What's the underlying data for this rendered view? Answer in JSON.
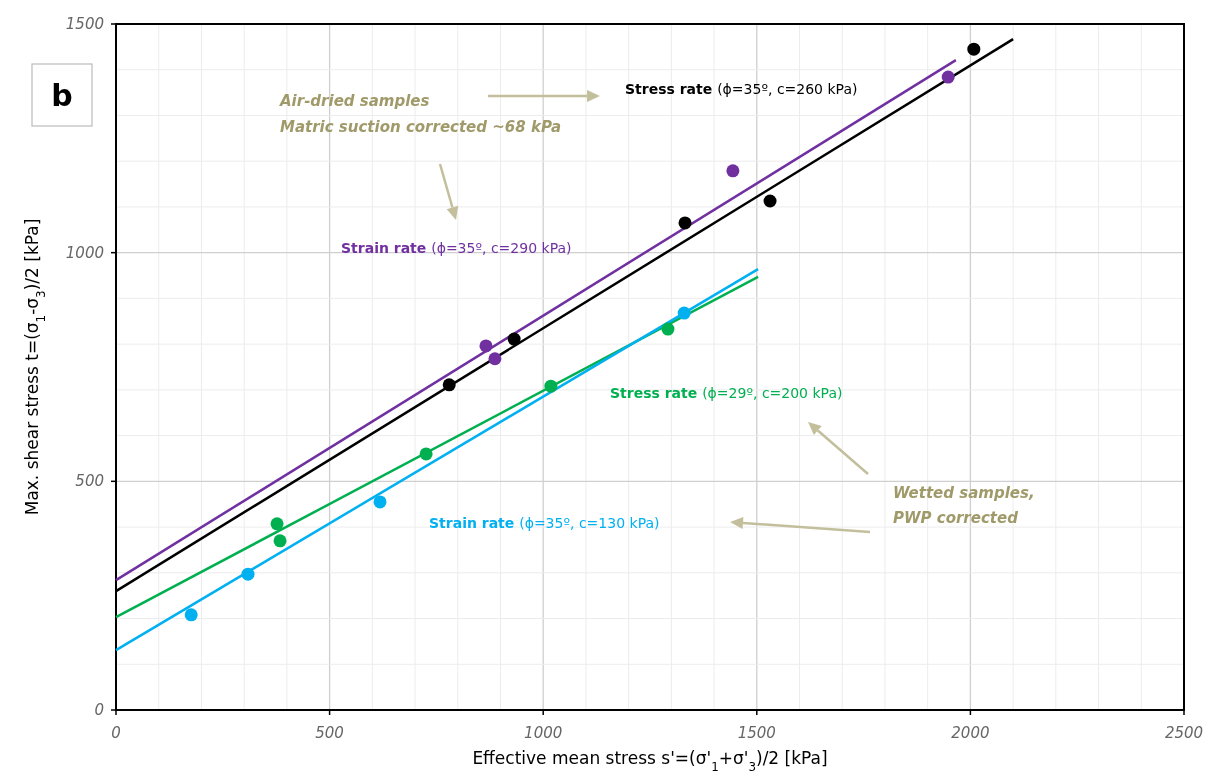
{
  "chart_data": {
    "type": "scatter",
    "xlabel": "Effective mean stress s'=(σ'$_{1}$+σ'$_{3}$)/2  [kPa]",
    "ylabel": "Max. shear stress   t=(σ$_{1}$-σ$_{3}$)/2  [kPa]",
    "xlim": [
      0,
      2500
    ],
    "ylim": [
      0,
      1500
    ],
    "xticks": [
      0,
      {
        "value": 100,
        "label": null
      },
      {
        "value": 200,
        "label": null
      },
      {
        "value": 300,
        "label": null
      },
      {
        "value": 400,
        "label": null
      },
      500,
      {
        "value": 600,
        "label": null
      },
      {
        "value": 700,
        "label": null
      },
      {
        "value": 800,
        "label": null
      },
      {
        "value": 900,
        "label": null
      },
      1000,
      {
        "value": 1100,
        "label": null
      },
      {
        "value": 1200,
        "label": null
      },
      {
        "value": 1300,
        "label": null
      },
      {
        "value": 1400,
        "label": null
      },
      1500,
      {
        "value": 1600,
        "label": null
      },
      {
        "value": 1700,
        "label": null
      },
      {
        "value": 1800,
        "label": null
      },
      {
        "value": 1900,
        "label": null
      },
      2000,
      {
        "value": 2100,
        "label": null
      },
      {
        "value": 2200,
        "label": null
      },
      {
        "value": 2300,
        "label": null
      },
      {
        "value": 2400,
        "label": null
      },
      2500
    ],
    "yticks": [
      0,
      {
        "value": 100,
        "label": null
      },
      {
        "value": 200,
        "label": null
      },
      {
        "value": 300,
        "label": null
      },
      {
        "value": 400,
        "label": null
      },
      500,
      {
        "value": 600,
        "label": null
      },
      {
        "value": 700,
        "label": null
      },
      {
        "value": 800,
        "label": null
      },
      {
        "value": 900,
        "label": null
      },
      1000,
      {
        "value": 1100,
        "label": null
      },
      {
        "value": 1200,
        "label": null
      },
      {
        "value": 1300,
        "label": null
      },
      {
        "value": 1400,
        "label": null
      },
      1500
    ],
    "grid": true,
    "marker": "circle",
    "series": [
      {
        "type": "line",
        "marker": "none",
        "name": "Stress rate (ϕ=35º, c=260 kPa)",
        "color": "#000000",
        "x": [
          0,
          2100
        ],
        "values": [
          260,
          1467
        ]
      },
      {
        "type": "line",
        "marker": "none",
        "name": "Strain rate (ϕ=35º, c=290 kPa)",
        "color": "#7030a0",
        "x": [
          0,
          1966
        ],
        "values": [
          284,
          1421
        ]
      },
      {
        "type": "line",
        "marker": "none",
        "name": "Stress rate (ϕ=29º, c=200 kPa)",
        "color": "#00b050",
        "x": [
          0,
          1503
        ],
        "values": [
          203,
          947
        ]
      },
      {
        "type": "line",
        "marker": "none",
        "name": "Strain rate (ϕ=35º, c=130 kPa)",
        "color": "#00b0f0",
        "x": [
          0,
          1503
        ],
        "values": [
          131,
          964
        ]
      },
      {
        "color": "#000000",
        "x": [
          780,
          932,
          1332,
          1531,
          2008
        ],
        "values": [
          711,
          811,
          1065,
          1113,
          1445
        ]
      },
      {
        "color": "#7030a0",
        "x": [
          866,
          887,
          1444,
          1948
        ],
        "values": [
          796,
          768,
          1179,
          1384
        ]
      },
      {
        "color": "#00b050",
        "x": [
          377,
          384,
          726,
          1018,
          1292
        ],
        "values": [
          407,
          370,
          560,
          708,
          833
        ]
      },
      {
        "color": "#00b0f0",
        "x": [
          176,
          309,
          618,
          1330
        ],
        "values": [
          208,
          297,
          455,
          868
        ]
      }
    ],
    "annotations": [
      "b",
      "Air-dried samples\nMatric suction corrected ~68 kPa",
      "Wetted samples,\nPWP corrected"
    ]
  }
}
